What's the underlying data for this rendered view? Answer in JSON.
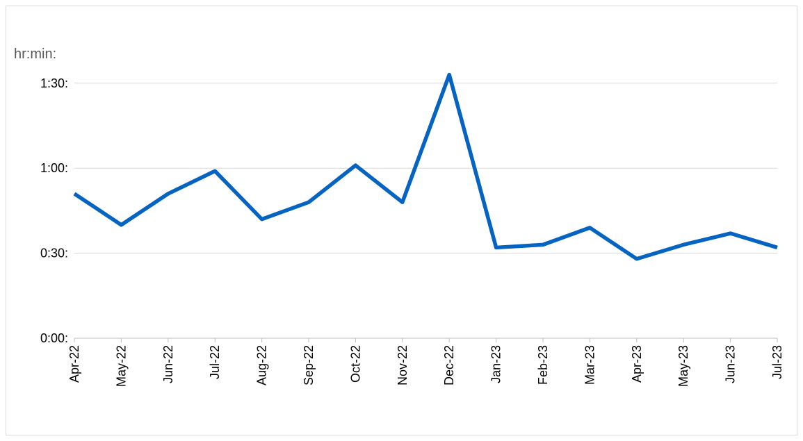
{
  "chart_data": {
    "type": "line",
    "y_label": "hr:min:",
    "categories": [
      "Apr-22",
      "May-22",
      "Jun-22",
      "Jul-22",
      "Aug-22",
      "Sep-22",
      "Oct-22",
      "Nov-22",
      "Dec-22",
      "Jan-23",
      "Feb-23",
      "Mar-23",
      "Apr-23",
      "May-23",
      "Jun-23",
      "Jul-23"
    ],
    "values": [
      51,
      40,
      51,
      59,
      42,
      48,
      61,
      48,
      93,
      32,
      33,
      39,
      28,
      33,
      37,
      32
    ],
    "color": "#0563c1",
    "ylim": [
      0,
      100
    ],
    "yticks": [
      {
        "value": 0,
        "label": "0:00:"
      },
      {
        "value": 30,
        "label": "0:30:"
      },
      {
        "value": 60,
        "label": "1:00:"
      },
      {
        "value": 90,
        "label": "1:30:"
      }
    ],
    "grid": true
  }
}
